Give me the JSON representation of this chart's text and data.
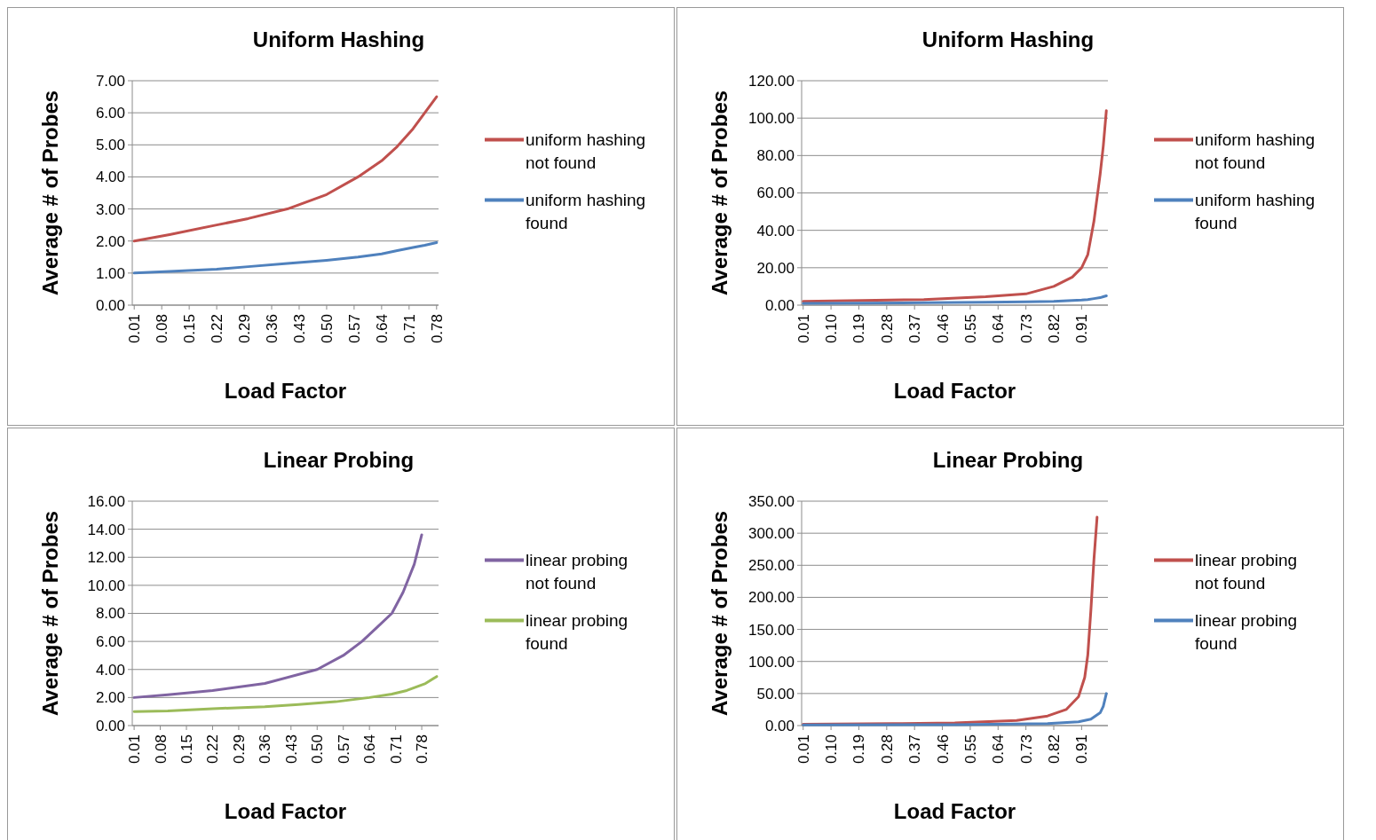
{
  "chart_data": [
    {
      "type": "line",
      "title": "Uniform Hashing",
      "xlabel": "Load Factor",
      "ylabel": "Average # of Probes",
      "xlim": [
        0.005,
        0.785
      ],
      "ylim": [
        0,
        7
      ],
      "xticks": [
        {
          "value": 0.01,
          "label": "0.01"
        },
        {
          "value": 0.08,
          "label": "0.08"
        },
        {
          "value": 0.15,
          "label": "0.15"
        },
        {
          "value": 0.22,
          "label": "0.22"
        },
        {
          "value": 0.29,
          "label": "0.29"
        },
        {
          "value": 0.36,
          "label": "0.36"
        },
        {
          "value": 0.43,
          "label": "0.43"
        },
        {
          "value": 0.5,
          "label": "0.50"
        },
        {
          "value": 0.57,
          "label": "0.57"
        },
        {
          "value": 0.64,
          "label": "0.64"
        },
        {
          "value": 0.71,
          "label": "0.71"
        },
        {
          "value": 0.78,
          "label": "0.78"
        }
      ],
      "yticks": [
        {
          "value": 0,
          "label": "0.00"
        },
        {
          "value": 1,
          "label": "1.00"
        },
        {
          "value": 2,
          "label": "2.00"
        },
        {
          "value": 3,
          "label": "3.00"
        },
        {
          "value": 4,
          "label": "4.00"
        },
        {
          "value": 5,
          "label": "5.00"
        },
        {
          "value": 6,
          "label": "6.00"
        },
        {
          "value": 7,
          "label": "7.00"
        }
      ],
      "grid": "y",
      "legend": "right",
      "x": [
        0.01,
        0.1,
        0.22,
        0.3,
        0.4,
        0.5,
        0.58,
        0.64,
        0.68,
        0.72,
        0.75,
        0.78
      ],
      "series": [
        {
          "name": "uniform hashing not found",
          "color": "#c0504d",
          "values": [
            2.0,
            2.2,
            2.5,
            2.7,
            3.0,
            3.45,
            4.0,
            4.5,
            4.95,
            5.5,
            6.0,
            6.5
          ]
        },
        {
          "name": "uniform hashing found",
          "color": "#4f81bd",
          "values": [
            1.0,
            1.05,
            1.12,
            1.2,
            1.3,
            1.4,
            1.5,
            1.6,
            1.7,
            1.8,
            1.87,
            1.95
          ]
        }
      ]
    },
    {
      "type": "line",
      "title": "Uniform Hashing",
      "xlabel": "Load Factor",
      "ylabel": "Average # of Probes",
      "xlim": [
        0.005,
        0.995
      ],
      "ylim": [
        0,
        120
      ],
      "xticks": [
        {
          "value": 0.01,
          "label": "0.01"
        },
        {
          "value": 0.1,
          "label": "0.10"
        },
        {
          "value": 0.19,
          "label": "0.19"
        },
        {
          "value": 0.28,
          "label": "0.28"
        },
        {
          "value": 0.37,
          "label": "0.37"
        },
        {
          "value": 0.46,
          "label": "0.46"
        },
        {
          "value": 0.55,
          "label": "0.55"
        },
        {
          "value": 0.64,
          "label": "0.64"
        },
        {
          "value": 0.73,
          "label": "0.73"
        },
        {
          "value": 0.82,
          "label": "0.82"
        },
        {
          "value": 0.91,
          "label": "0.91"
        }
      ],
      "yticks": [
        {
          "value": 0,
          "label": "0.00"
        },
        {
          "value": 20,
          "label": "20.00"
        },
        {
          "value": 40,
          "label": "40.00"
        },
        {
          "value": 60,
          "label": "60.00"
        },
        {
          "value": 80,
          "label": "80.00"
        },
        {
          "value": 100,
          "label": "100.00"
        },
        {
          "value": 120,
          "label": "120.00"
        }
      ],
      "grid": "y",
      "legend": "right",
      "x": [
        0.01,
        0.2,
        0.4,
        0.6,
        0.73,
        0.82,
        0.88,
        0.91,
        0.93,
        0.95,
        0.97,
        0.98,
        0.99
      ],
      "series": [
        {
          "name": "uniform hashing not found",
          "color": "#c0504d",
          "values": [
            2,
            2.5,
            3,
            4.5,
            6,
            10,
            15,
            20,
            27,
            45,
            70,
            85,
            104
          ]
        },
        {
          "name": "uniform hashing found",
          "color": "#4f81bd",
          "values": [
            1,
            1.1,
            1.3,
            1.6,
            1.8,
            2,
            2.5,
            2.7,
            3,
            3.5,
            4,
            4.5,
            5
          ]
        }
      ]
    },
    {
      "type": "line",
      "title": "Linear Probing",
      "xlabel": "Load Factor",
      "ylabel": "Average # of Probes",
      "xlim": [
        0.005,
        0.825
      ],
      "ylim": [
        0,
        16
      ],
      "xticks": [
        {
          "value": 0.01,
          "label": "0.01"
        },
        {
          "value": 0.08,
          "label": "0.08"
        },
        {
          "value": 0.15,
          "label": "0.15"
        },
        {
          "value": 0.22,
          "label": "0.22"
        },
        {
          "value": 0.29,
          "label": "0.29"
        },
        {
          "value": 0.36,
          "label": "0.36"
        },
        {
          "value": 0.43,
          "label": "0.43"
        },
        {
          "value": 0.5,
          "label": "0.50"
        },
        {
          "value": 0.57,
          "label": "0.57"
        },
        {
          "value": 0.64,
          "label": "0.64"
        },
        {
          "value": 0.71,
          "label": "0.71"
        },
        {
          "value": 0.78,
          "label": "0.78"
        }
      ],
      "yticks": [
        {
          "value": 0,
          "label": "0.00"
        },
        {
          "value": 2,
          "label": "2.00"
        },
        {
          "value": 4,
          "label": "4.00"
        },
        {
          "value": 6,
          "label": "6.00"
        },
        {
          "value": 8,
          "label": "8.00"
        },
        {
          "value": 10,
          "label": "10.00"
        },
        {
          "value": 12,
          "label": "12.00"
        },
        {
          "value": 14,
          "label": "14.00"
        },
        {
          "value": 16,
          "label": "16.00"
        }
      ],
      "grid": "y",
      "legend": "right",
      "series": [
        {
          "name": "linear probing not found",
          "color": "#8064a2",
          "x": [
            0.01,
            0.1,
            0.22,
            0.36,
            0.5,
            0.57,
            0.62,
            0.66,
            0.7,
            0.73,
            0.76,
            0.78
          ],
          "values": [
            2.0,
            2.2,
            2.5,
            3.0,
            4.0,
            5.0,
            6.0,
            7.0,
            8.0,
            9.5,
            11.5,
            13.6
          ]
        },
        {
          "name": "linear probing found",
          "color": "#9bbb59",
          "x": [
            0.01,
            0.1,
            0.22,
            0.36,
            0.45,
            0.55,
            0.64,
            0.7,
            0.74,
            0.79,
            0.82
          ],
          "values": [
            1.0,
            1.05,
            1.2,
            1.35,
            1.5,
            1.7,
            2.0,
            2.25,
            2.5,
            3.0,
            3.5
          ]
        }
      ]
    },
    {
      "type": "line",
      "title": "Linear Probing",
      "xlabel": "Load Factor",
      "ylabel": "Average # of Probes",
      "xlim": [
        0.005,
        0.995
      ],
      "ylim": [
        0,
        350
      ],
      "xticks": [
        {
          "value": 0.01,
          "label": "0.01"
        },
        {
          "value": 0.1,
          "label": "0.10"
        },
        {
          "value": 0.19,
          "label": "0.19"
        },
        {
          "value": 0.28,
          "label": "0.28"
        },
        {
          "value": 0.37,
          "label": "0.37"
        },
        {
          "value": 0.46,
          "label": "0.46"
        },
        {
          "value": 0.55,
          "label": "0.55"
        },
        {
          "value": 0.64,
          "label": "0.64"
        },
        {
          "value": 0.73,
          "label": "0.73"
        },
        {
          "value": 0.82,
          "label": "0.82"
        },
        {
          "value": 0.91,
          "label": "0.91"
        }
      ],
      "yticks": [
        {
          "value": 0,
          "label": "0.00"
        },
        {
          "value": 50,
          "label": "50.00"
        },
        {
          "value": 100,
          "label": "100.00"
        },
        {
          "value": 150,
          "label": "150.00"
        },
        {
          "value": 200,
          "label": "200.00"
        },
        {
          "value": 250,
          "label": "250.00"
        },
        {
          "value": 300,
          "label": "300.00"
        },
        {
          "value": 350,
          "label": "350.00"
        }
      ],
      "grid": "y",
      "legend": "right",
      "series": [
        {
          "name": "linear probing not found",
          "color": "#c0504d",
          "x": [
            0.01,
            0.3,
            0.5,
            0.7,
            0.8,
            0.86,
            0.9,
            0.92,
            0.93,
            0.94,
            0.95,
            0.96
          ],
          "values": [
            2,
            3,
            4,
            8,
            15,
            25,
            45,
            75,
            110,
            180,
            260,
            325
          ]
        },
        {
          "name": "linear probing found",
          "color": "#4f81bd",
          "x": [
            0.01,
            0.5,
            0.8,
            0.9,
            0.94,
            0.97,
            0.98,
            0.99
          ],
          "values": [
            1,
            1.5,
            3,
            6,
            10,
            20,
            30,
            50
          ]
        }
      ]
    }
  ]
}
